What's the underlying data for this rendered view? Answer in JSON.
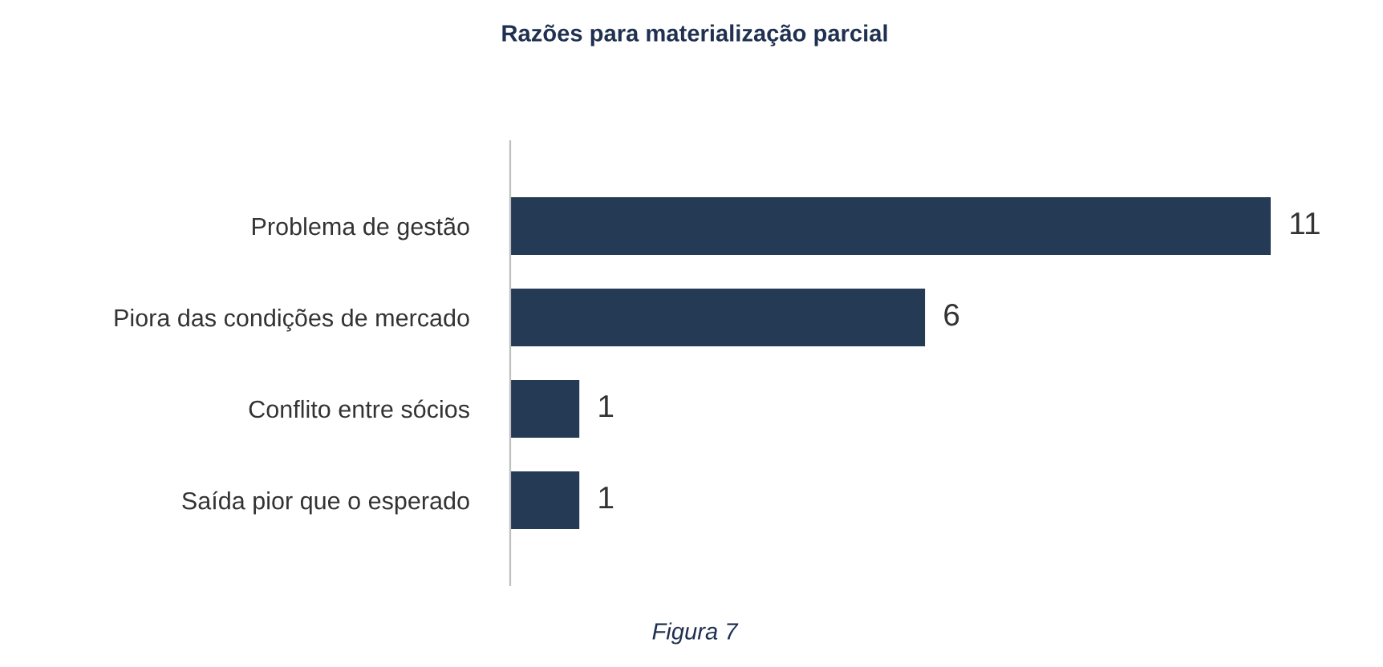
{
  "chart_data": {
    "type": "bar",
    "orientation": "horizontal",
    "title": "Razões para materialização parcial",
    "categories": [
      "Problema de gestão",
      "Piora das condições de mercado",
      "Conflito entre sócios",
      "Saída pior que o esperado"
    ],
    "values": [
      11,
      6,
      1,
      1
    ],
    "color": "#253a54",
    "data_labels": true,
    "grid": false,
    "legend": false,
    "annotations": [
      "Figura 7"
    ]
  }
}
